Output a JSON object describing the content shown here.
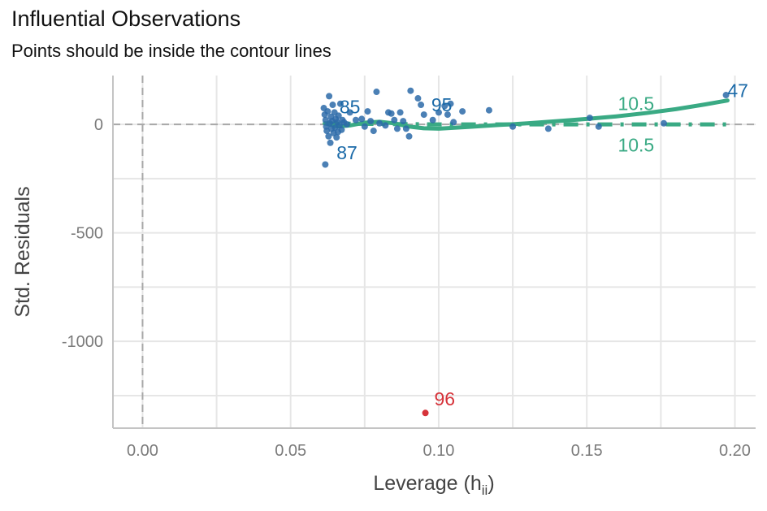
{
  "chart_data": {
    "type": "scatter",
    "title": "Influential Observations",
    "subtitle": "Points should be inside the contour lines",
    "xlabel": "Leverage (h",
    "xlabel_sub": "ii",
    "xlabel_close": ")",
    "ylabel": "Std. Residuals",
    "xlim": [
      -0.01,
      0.207
    ],
    "ylim": [
      -1400,
      225
    ],
    "x_ticks": [
      0.0,
      0.05,
      0.1,
      0.15,
      0.2
    ],
    "x_tick_labels": [
      "0.00",
      "0.05",
      "0.10",
      "0.15",
      "0.20"
    ],
    "y_ticks": [
      0,
      -500,
      -1000
    ],
    "y_tick_labels": [
      "0",
      "-500",
      "-1000"
    ],
    "grid": true,
    "colors": {
      "points": "#2c6aa8",
      "label": "#1b6aa8",
      "outlier": "#d6333a",
      "smooth": "#3aaa84",
      "contour": "#3aaa84",
      "refline": "#a8a8a8",
      "grid": "#e6e6e6",
      "axis": "#c4c4c4"
    },
    "points": [
      {
        "x": 0.0612,
        "y": 75
      },
      {
        "x": 0.0615,
        "y": 45
      },
      {
        "x": 0.0618,
        "y": 20
      },
      {
        "x": 0.062,
        "y": -10
      },
      {
        "x": 0.0622,
        "y": -30
      },
      {
        "x": 0.0625,
        "y": 60
      },
      {
        "x": 0.0628,
        "y": -55
      },
      {
        "x": 0.063,
        "y": 130
      },
      {
        "x": 0.0632,
        "y": 5
      },
      {
        "x": 0.0634,
        "y": -85
      },
      {
        "x": 0.0636,
        "y": 35
      },
      {
        "x": 0.0638,
        "y": -20
      },
      {
        "x": 0.064,
        "y": 15
      },
      {
        "x": 0.0642,
        "y": 90
      },
      {
        "x": 0.0645,
        "y": -40
      },
      {
        "x": 0.0648,
        "y": 55
      },
      {
        "x": 0.065,
        "y": -15
      },
      {
        "x": 0.0652,
        "y": 25
      },
      {
        "x": 0.0655,
        "y": -60
      },
      {
        "x": 0.0658,
        "y": 10
      },
      {
        "x": 0.066,
        "y": -35
      },
      {
        "x": 0.0662,
        "y": 40
      },
      {
        "x": 0.0665,
        "y": -5
      },
      {
        "x": 0.0668,
        "y": 95
      },
      {
        "x": 0.0672,
        "y": -25
      },
      {
        "x": 0.0675,
        "y": 20
      },
      {
        "x": 0.068,
        "y": 10
      },
      {
        "x": 0.069,
        "y": 0
      },
      {
        "x": 0.07,
        "y": 55
      },
      {
        "x": 0.072,
        "y": 20
      },
      {
        "x": 0.074,
        "y": 25
      },
      {
        "x": 0.075,
        "y": -10
      },
      {
        "x": 0.076,
        "y": 60
      },
      {
        "x": 0.077,
        "y": 15
      },
      {
        "x": 0.078,
        "y": -30
      },
      {
        "x": 0.079,
        "y": 150
      },
      {
        "x": 0.08,
        "y": 5
      },
      {
        "x": 0.082,
        "y": -5
      },
      {
        "x": 0.083,
        "y": 55
      },
      {
        "x": 0.084,
        "y": 50
      },
      {
        "x": 0.085,
        "y": 20
      },
      {
        "x": 0.086,
        "y": -20
      },
      {
        "x": 0.087,
        "y": 55
      },
      {
        "x": 0.088,
        "y": 15
      },
      {
        "x": 0.089,
        "y": -20
      },
      {
        "x": 0.09,
        "y": -55
      },
      {
        "x": 0.0905,
        "y": 155
      },
      {
        "x": 0.093,
        "y": 120
      },
      {
        "x": 0.094,
        "y": 90
      },
      {
        "x": 0.095,
        "y": 45
      },
      {
        "x": 0.098,
        "y": 20
      },
      {
        "x": 0.1,
        "y": 55
      },
      {
        "x": 0.102,
        "y": 85
      },
      {
        "x": 0.103,
        "y": 45
      },
      {
        "x": 0.104,
        "y": 95
      },
      {
        "x": 0.105,
        "y": 10
      },
      {
        "x": 0.108,
        "y": 60
      },
      {
        "x": 0.117,
        "y": 65
      },
      {
        "x": 0.125,
        "y": -10
      },
      {
        "x": 0.137,
        "y": -20
      },
      {
        "x": 0.151,
        "y": 30
      },
      {
        "x": 0.154,
        "y": -10
      },
      {
        "x": 0.176,
        "y": 5
      },
      {
        "x": 0.197,
        "y": 135
      },
      {
        "x": 0.0617,
        "y": -185
      }
    ],
    "outliers": [
      {
        "x": 0.0955,
        "y": -1330
      }
    ],
    "labels": [
      {
        "text": "85",
        "x": 0.0665,
        "y": 80,
        "color": "label"
      },
      {
        "text": "95",
        "x": 0.0975,
        "y": 90,
        "color": "label"
      },
      {
        "text": "87",
        "x": 0.0655,
        "y": -130,
        "color": "label"
      },
      {
        "text": "47",
        "x": 0.1975,
        "y": 155,
        "color": "label"
      },
      {
        "text": "96",
        "x": 0.0985,
        "y": -1265,
        "color": "outlier"
      },
      {
        "text": "1",
        "x": 0.1605,
        "y": 95,
        "color": "contour"
      },
      {
        "text": "0.5",
        "x": 0.164,
        "y": 95,
        "color": "contour"
      },
      {
        "text": "1",
        "x": 0.1605,
        "y": -95,
        "color": "contour"
      },
      {
        "text": "0.5",
        "x": 0.164,
        "y": -95,
        "color": "contour"
      }
    ],
    "smooth_line": [
      {
        "x": 0.0615,
        "y": 5
      },
      {
        "x": 0.066,
        "y": -10
      },
      {
        "x": 0.07,
        "y": -5
      },
      {
        "x": 0.075,
        "y": 8
      },
      {
        "x": 0.08,
        "y": 12
      },
      {
        "x": 0.085,
        "y": 5
      },
      {
        "x": 0.09,
        "y": -10
      },
      {
        "x": 0.095,
        "y": -18
      },
      {
        "x": 0.1,
        "y": -20
      },
      {
        "x": 0.11,
        "y": -12
      },
      {
        "x": 0.12,
        "y": -3
      },
      {
        "x": 0.13,
        "y": 5
      },
      {
        "x": 0.14,
        "y": 15
      },
      {
        "x": 0.15,
        "y": 25
      },
      {
        "x": 0.16,
        "y": 37
      },
      {
        "x": 0.17,
        "y": 52
      },
      {
        "x": 0.18,
        "y": 70
      },
      {
        "x": 0.19,
        "y": 92
      },
      {
        "x": 0.1975,
        "y": 110
      }
    ],
    "contour_line": [
      {
        "x": 0.0615,
        "y": 5
      },
      {
        "x": 0.07,
        "y": 3
      },
      {
        "x": 0.08,
        "y": 2
      },
      {
        "x": 0.09,
        "y": 1
      },
      {
        "x": 0.1,
        "y": 0
      },
      {
        "x": 0.15,
        "y": 0
      },
      {
        "x": 0.1975,
        "y": 0
      }
    ]
  }
}
